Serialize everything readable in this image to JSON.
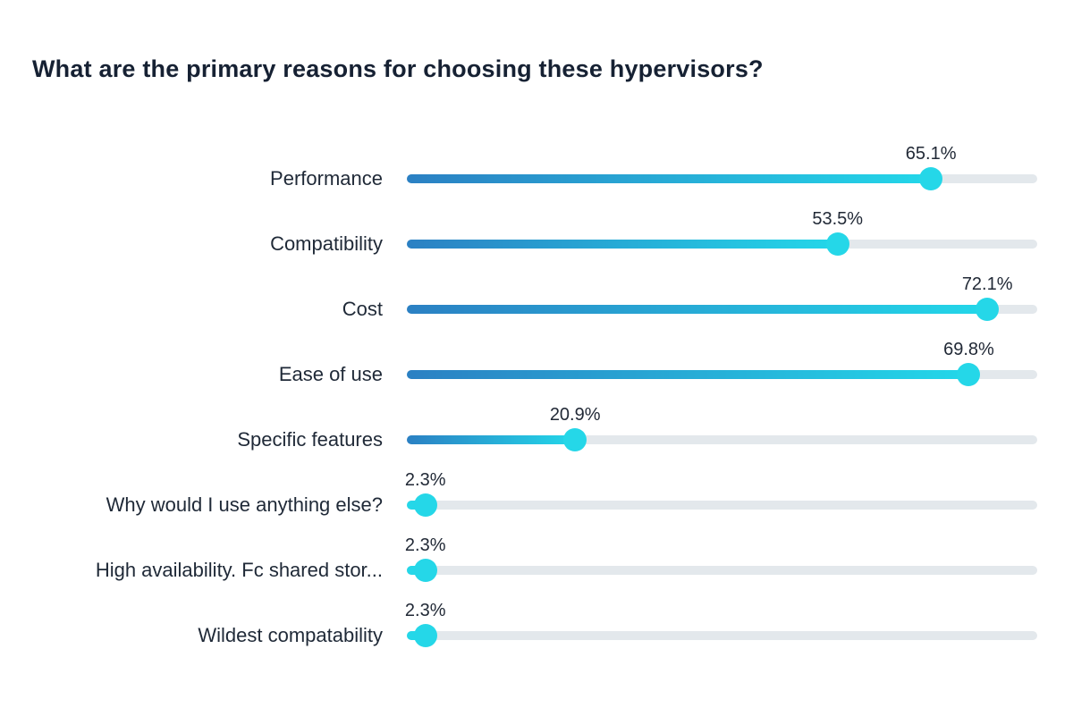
{
  "title": "What are the primary reasons for choosing these hypervisors?",
  "chart_data": {
    "type": "bar",
    "variant": "lollipop",
    "orientation": "horizontal",
    "title": "What are the primary reasons for choosing these hypervisors?",
    "categories": [
      "Performance",
      "Compatibility",
      "Cost",
      "Ease of use",
      "Specific features",
      "Why would I use anything else?",
      "High availability. Fc shared stor...",
      "Wildest compatability"
    ],
    "values": [
      65.1,
      53.5,
      72.1,
      69.8,
      20.9,
      2.3,
      2.3,
      2.3
    ],
    "value_labels": [
      "65.1%",
      "53.5%",
      "72.1%",
      "69.8%",
      "20.9%",
      "2.3%",
      "2.3%",
      "2.3%"
    ],
    "xlabel": "",
    "ylabel": "",
    "xlim": [
      0,
      78.3
    ],
    "grid": false,
    "legend": false,
    "colors": {
      "background": "#ffffff",
      "title_text": "#162133",
      "label_text": "#1f2937",
      "value_text": "#212936",
      "track": "#e3e8ec",
      "bar_gradient_start": "#2b80c3",
      "bar_gradient_end": "#23d7e9",
      "dot": "#25d7e8"
    }
  }
}
